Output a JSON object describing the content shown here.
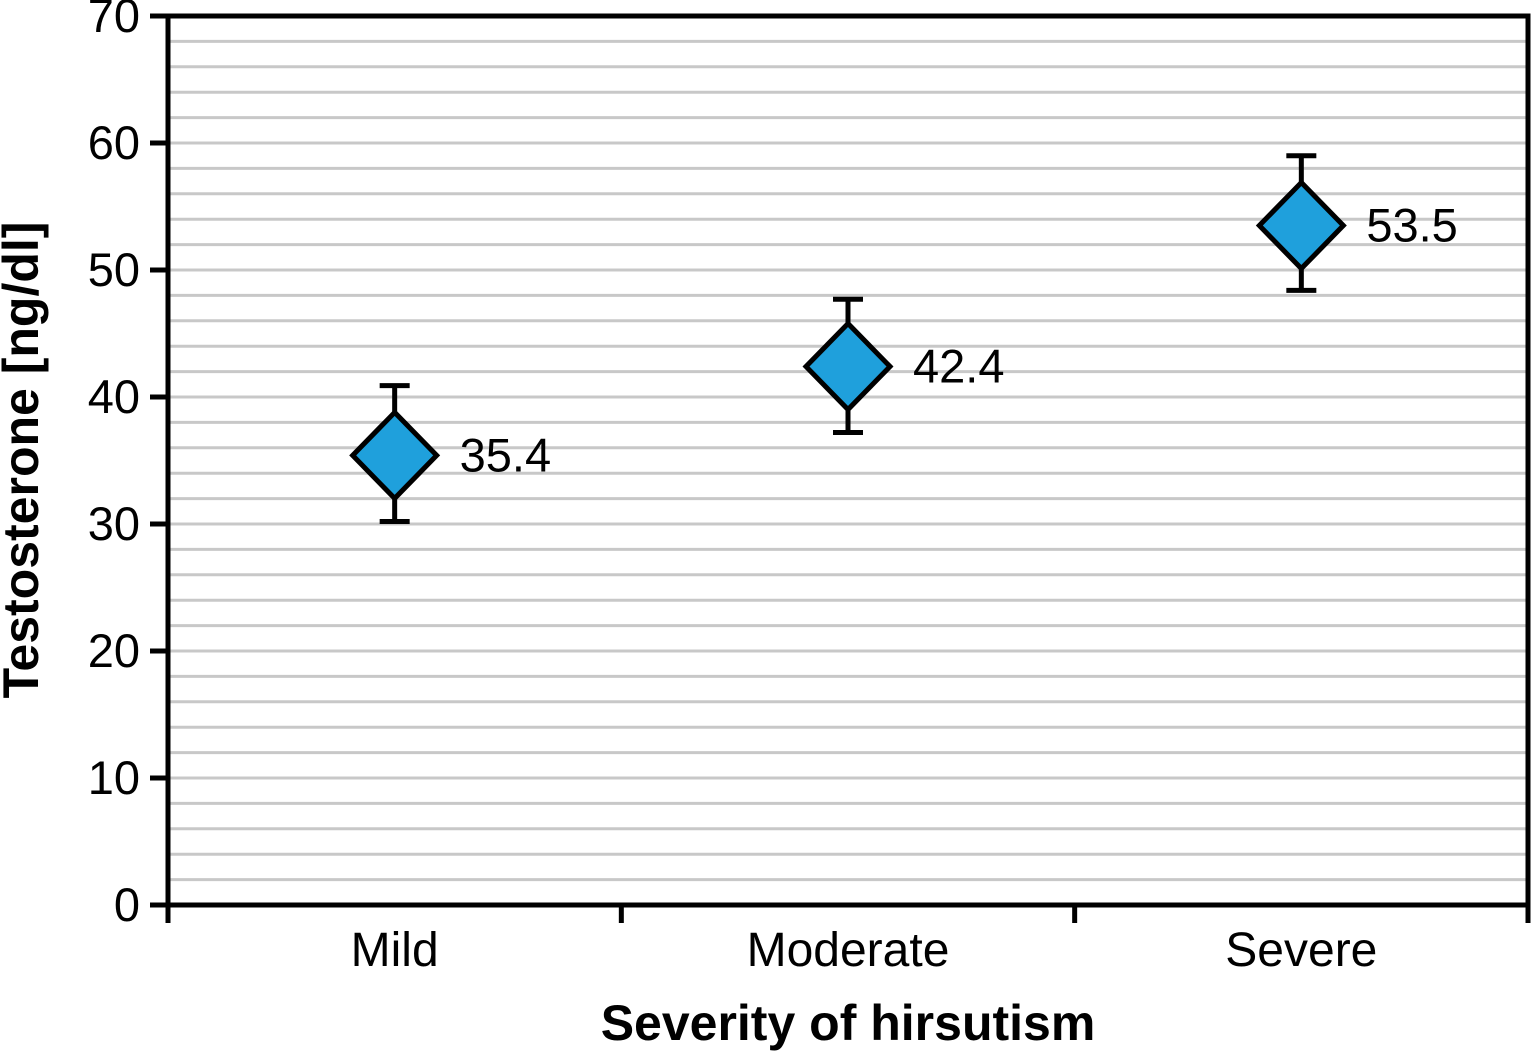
{
  "chart_data": {
    "type": "scatter",
    "marker": "diamond",
    "title": "",
    "xlabel": "Severity of hirsutism",
    "ylabel": "Testosterone [ng/dl]",
    "categories": [
      "Mild",
      "Moderate",
      "Severe"
    ],
    "values": [
      35.4,
      42.4,
      53.5
    ],
    "value_labels": [
      "35.4",
      "42.4",
      "53.5"
    ],
    "error_low": [
      30.2,
      37.2,
      48.4
    ],
    "error_high": [
      40.9,
      47.7,
      59.0
    ],
    "ylim": [
      0,
      70
    ],
    "ytick_step": 10,
    "ytick_labels": [
      "0",
      "10",
      "20",
      "30",
      "40",
      "50",
      "60",
      "70"
    ],
    "grid_step": 2,
    "grid": true,
    "legend": false,
    "colors": {
      "marker_fill": "#1FA0DC",
      "marker_stroke": "#000000",
      "grid_line": "#c8c8c8",
      "axis_line": "#000000",
      "text": "#000000",
      "background": "#ffffff"
    }
  }
}
